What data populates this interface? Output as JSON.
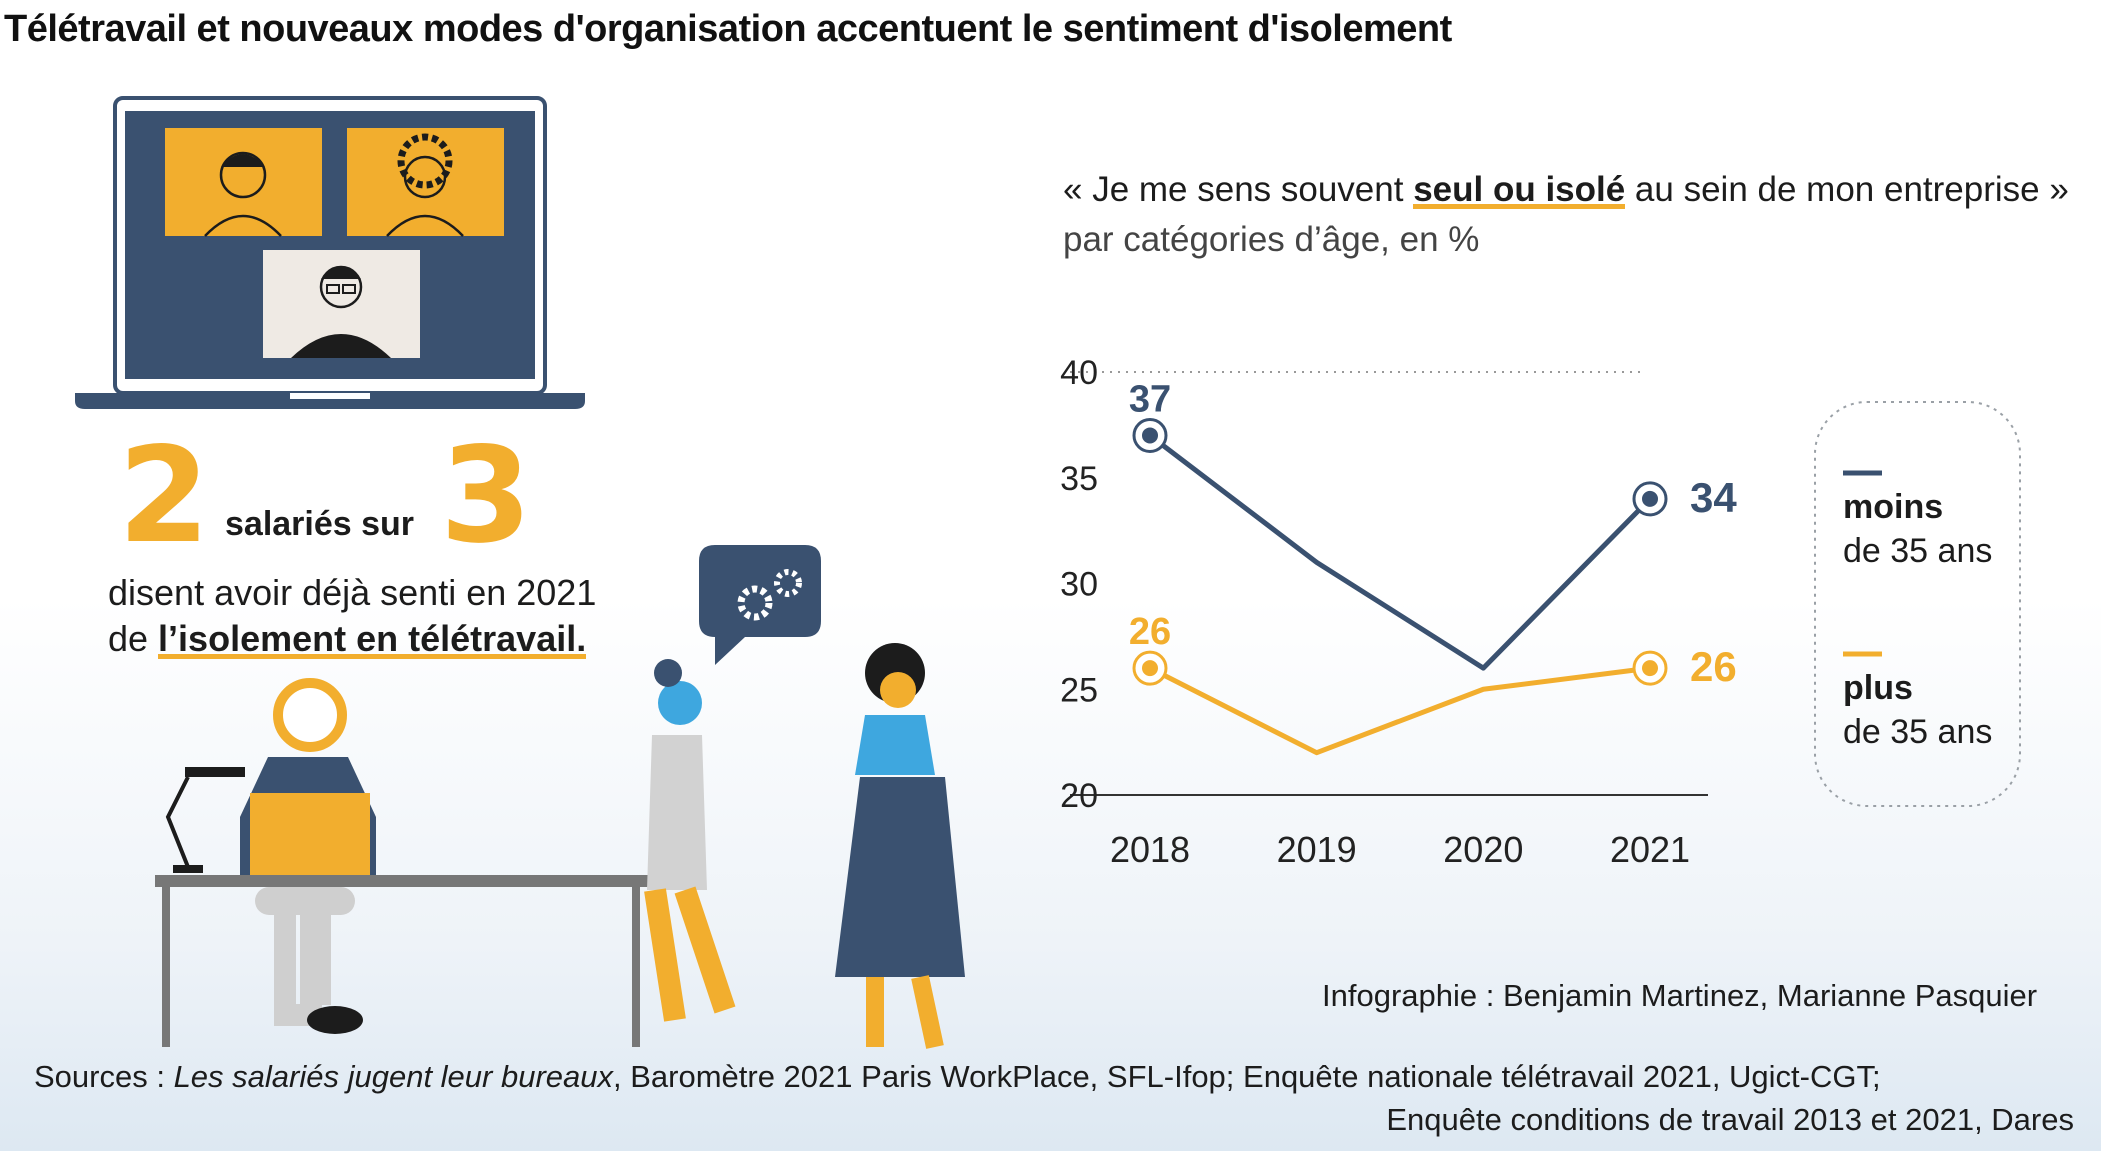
{
  "title": "Télétravail et nouveaux modes d'organisation accentuent le sentiment d'isolement",
  "stat": {
    "num1": "2",
    "middle": "salariés sur",
    "num2": "3",
    "line1": "disent avoir déjà senti en 2021",
    "line2_prefix": "de ",
    "line2_highlight": "l’isolement en télétravail."
  },
  "quote": {
    "open": "« Je me sens souvent ",
    "highlight": "seul ou isolé",
    "close": " au sein de mon entreprise »",
    "unit": "par catégories d’âge, en %"
  },
  "chart_data": {
    "type": "line",
    "x": [
      "2018",
      "2019",
      "2020",
      "2021"
    ],
    "ylim": [
      20,
      40
    ],
    "yticks": [
      "20",
      "25",
      "30",
      "35",
      "40"
    ],
    "series": [
      {
        "name": "moins de 35 ans",
        "values": [
          37,
          31,
          26,
          34
        ],
        "color": "#3a5170",
        "start_label": "37",
        "end_label": "34",
        "legend_bold": "moins",
        "legend_rest": "de 35 ans"
      },
      {
        "name": "plus de 35 ans",
        "values": [
          26,
          22,
          25,
          26
        ],
        "color": "#f2ae2e",
        "start_label": "26",
        "end_label": "26",
        "legend_bold": "plus",
        "legend_rest": "de 35 ans"
      }
    ],
    "grid": "dotted at 40 only"
  },
  "credit": "Infographie : Benjamin Martinez, Marianne Pasquier",
  "sources": {
    "prefix": "Sources :  ",
    "italic": "Les salariés jugent leur bureaux",
    "rest1": ", Baromètre 2021 Paris WorkPlace, SFL-Ifop; Enquête nationale télétravail 2021, Ugict-CGT;",
    "line2": "Enquête conditions de travail 2013 et 2021, Dares"
  },
  "colors": {
    "navy": "#3a5170",
    "orange": "#f2ae2e",
    "blue": "#3ea7df"
  },
  "illustration_icons": [
    "laptop-video-call-icon",
    "office-scene-illustration",
    "gears-speech-bubble-icon"
  ]
}
